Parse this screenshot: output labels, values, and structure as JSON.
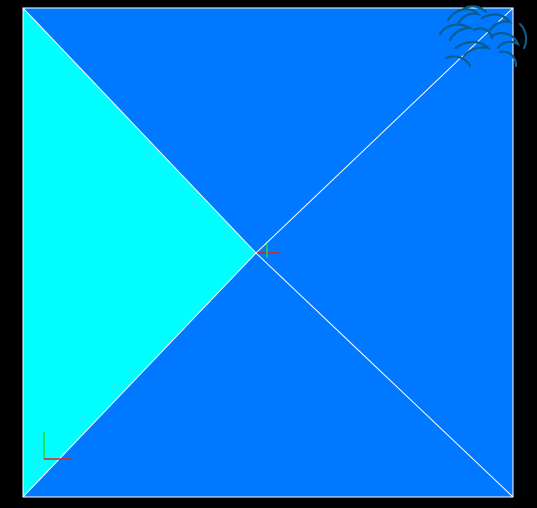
{
  "viewer": {
    "background_color": "#000000",
    "faces": {
      "left": {
        "color": "#00FFFF"
      },
      "top": {
        "color": "#0078FF"
      },
      "right": {
        "color": "#0078FF"
      },
      "bottom": {
        "color": "#0078FF"
      }
    },
    "edge_color": "#FFFFFF",
    "axes": {
      "x_color": "#E02020",
      "y_color": "#20E020"
    },
    "logo": {
      "icon": "swirl-logo-icon",
      "color": "#0A5C8C"
    }
  }
}
